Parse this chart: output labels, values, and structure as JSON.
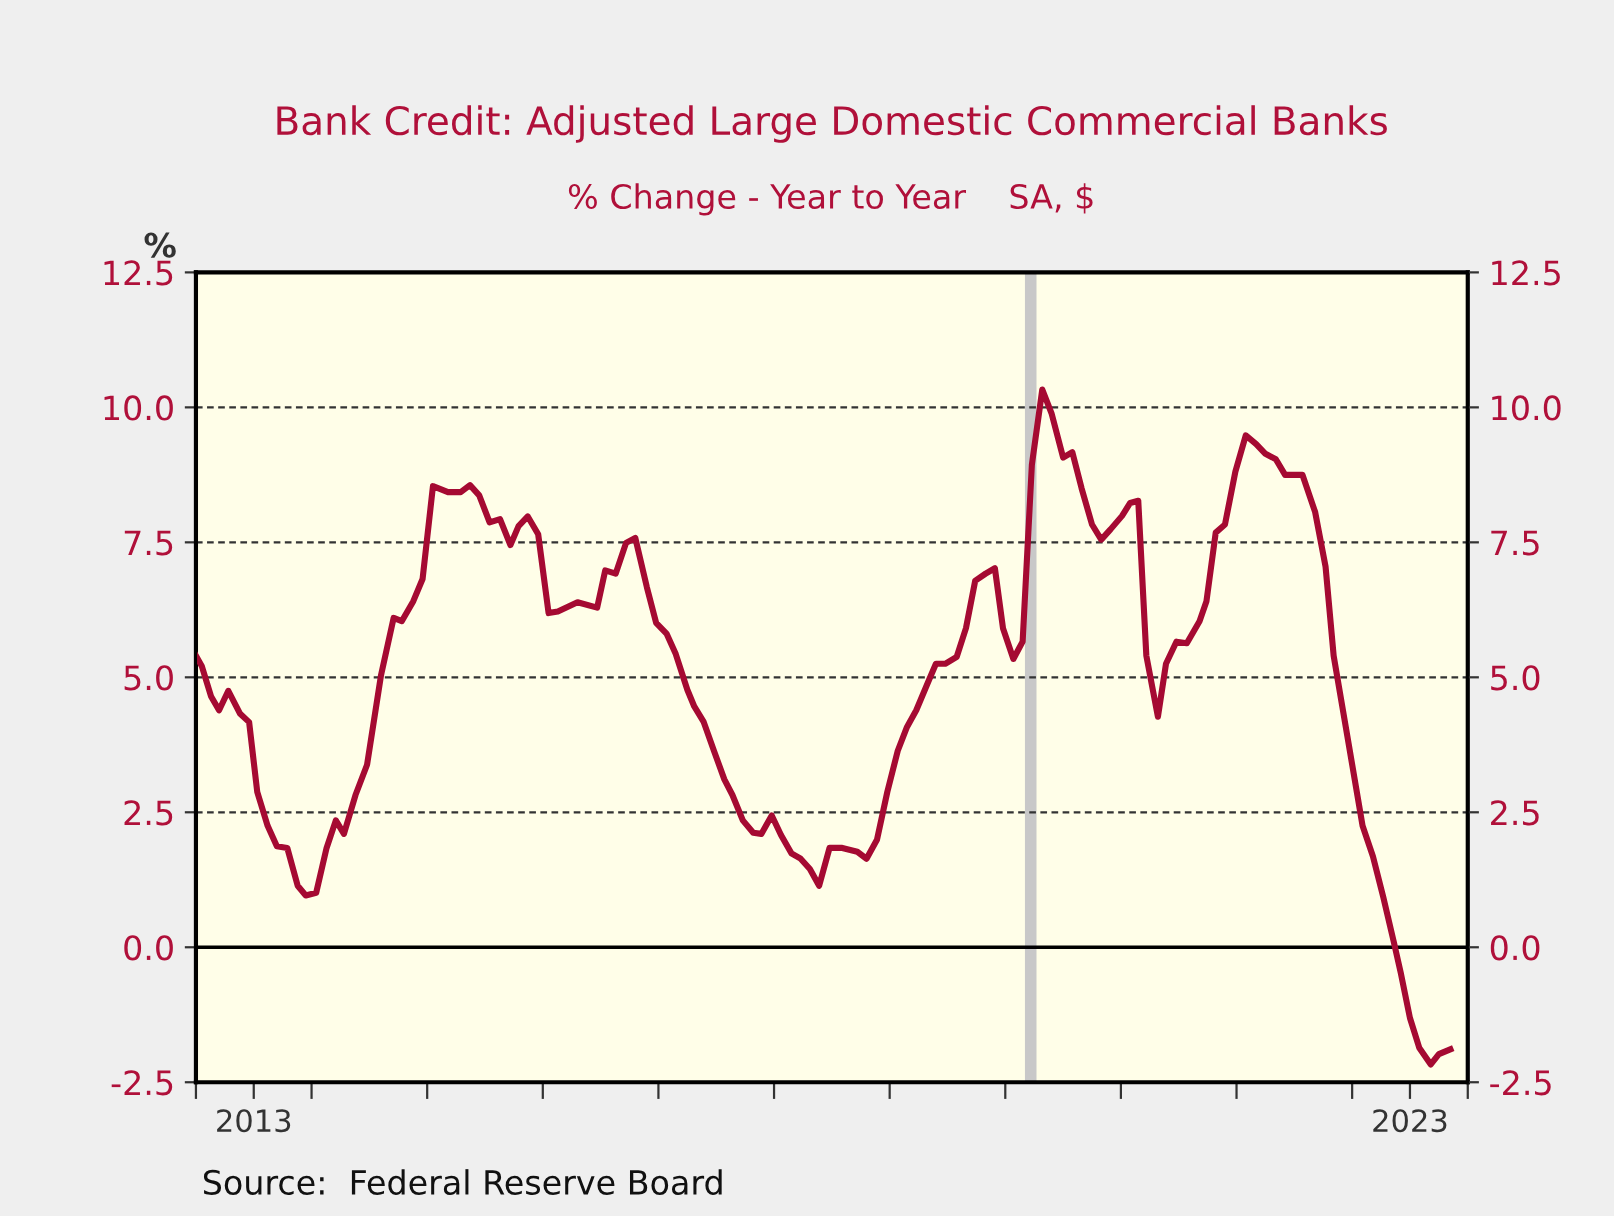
{
  "chart_data": {
    "type": "line",
    "title": "Bank Credit: Adjusted Large Domestic Commercial Banks",
    "subtitle": "% Change - Year to Year    SA, $",
    "ylabel": "%",
    "annotations": [
      "Source:  Federal Reserve Board"
    ],
    "x": [
      2013.0,
      2013.05,
      2013.13,
      2013.2,
      2013.28,
      2013.38,
      2013.46,
      2013.53,
      2013.62,
      2013.7,
      2013.79,
      2013.88,
      2013.95,
      2014.04,
      2014.13,
      2014.21,
      2014.28,
      2014.38,
      2014.48,
      2014.6,
      2014.71,
      2014.78,
      2014.88,
      2014.96,
      2015.05,
      2015.18,
      2015.29,
      2015.37,
      2015.45,
      2015.54,
      2015.63,
      2015.72,
      2015.79,
      2015.87,
      2015.96,
      2016.05,
      2016.13,
      2016.3,
      2016.47,
      2016.54,
      2016.63,
      2016.72,
      2016.8,
      2016.9,
      2016.98,
      2017.07,
      2017.15,
      2017.25,
      2017.31,
      2017.39,
      2017.48,
      2017.57,
      2017.64,
      2017.73,
      2017.82,
      2017.89,
      2017.98,
      2018.06,
      2018.15,
      2018.23,
      2018.31,
      2018.39,
      2018.48,
      2018.59,
      2018.72,
      2018.8,
      2018.89,
      2018.98,
      2019.07,
      2019.15,
      2019.23,
      2019.33,
      2019.4,
      2019.48,
      2019.58,
      2019.66,
      2019.74,
      2019.83,
      2019.91,
      2019.98,
      2020.07,
      2020.15,
      2020.23,
      2020.32,
      2020.4,
      2020.5,
      2020.58,
      2020.66,
      2020.75,
      2020.83,
      2020.91,
      2021.01,
      2021.08,
      2021.15,
      2021.22,
      2021.32,
      2021.39,
      2021.48,
      2021.57,
      2021.68,
      2021.74,
      2021.82,
      2021.9,
      2021.99,
      2022.08,
      2022.17,
      2022.25,
      2022.34,
      2022.42,
      2022.57,
      2022.68,
      2022.77,
      2022.84,
      2022.96,
      2023.09,
      2023.18,
      2023.27,
      2023.36,
      2023.42,
      2023.5,
      2023.58,
      2023.68,
      2023.75,
      2023.85
    ],
    "series": [
      {
        "color": "#a50a32",
        "values": [
          5.4,
          5.21,
          4.65,
          4.39,
          4.75,
          4.33,
          4.17,
          2.88,
          2.25,
          1.87,
          1.84,
          1.14,
          0.96,
          1.01,
          1.84,
          2.35,
          2.1,
          2.82,
          3.38,
          5.03,
          6.1,
          6.04,
          6.41,
          6.82,
          8.54,
          8.43,
          8.43,
          8.56,
          8.37,
          7.87,
          7.93,
          7.45,
          7.8,
          7.98,
          7.65,
          6.19,
          6.22,
          6.39,
          6.29,
          6.98,
          6.92,
          7.49,
          7.58,
          6.67,
          6.01,
          5.81,
          5.43,
          4.77,
          4.46,
          4.18,
          3.64,
          3.11,
          2.82,
          2.35,
          2.12,
          2.1,
          2.44,
          2.08,
          1.74,
          1.64,
          1.45,
          1.14,
          1.84,
          1.84,
          1.77,
          1.64,
          1.99,
          2.88,
          3.64,
          4.08,
          4.39,
          4.9,
          5.25,
          5.25,
          5.38,
          5.91,
          6.79,
          6.92,
          7.02,
          5.91,
          5.34,
          5.66,
          8.94,
          10.33,
          9.89,
          9.07,
          9.17,
          8.5,
          7.83,
          7.55,
          7.74,
          7.99,
          8.23,
          8.27,
          5.4,
          4.27,
          5.25,
          5.66,
          5.63,
          6.04,
          6.41,
          7.68,
          7.83,
          8.81,
          9.48,
          9.32,
          9.14,
          9.04,
          8.75,
          8.75,
          8.06,
          7.05,
          5.4,
          3.89,
          2.25,
          1.68,
          0.92,
          0.1,
          -0.47,
          -1.31,
          -1.86,
          -2.17,
          -1.98,
          -1.89
        ]
      }
    ],
    "xlim": [
      2013,
      2024
    ],
    "xticks": [
      {
        "value": 2013,
        "label": null
      },
      {
        "value": 2013.5,
        "label": "2013"
      },
      {
        "value": 2014,
        "label": null
      },
      {
        "value": 2015,
        "label": null
      },
      {
        "value": 2016,
        "label": null
      },
      {
        "value": 2017,
        "label": null
      },
      {
        "value": 2018,
        "label": null
      },
      {
        "value": 2019,
        "label": null
      },
      {
        "value": 2020,
        "label": null
      },
      {
        "value": 2021,
        "label": null
      },
      {
        "value": 2022,
        "label": null
      },
      {
        "value": 2023,
        "label": null
      },
      {
        "value": 2023.5,
        "label": "2023"
      },
      {
        "value": 2024,
        "label": null
      }
    ],
    "ylim": [
      -2.5,
      12.5
    ],
    "yticks": [
      -2.5,
      {
        "value": 0,
        "label": "0.0"
      },
      2.5,
      {
        "value": 5,
        "label": "5.0"
      },
      7.5,
      {
        "value": 10,
        "label": "10.0"
      },
      12.5
    ],
    "y2lim": [
      -2.5,
      12.5
    ],
    "y2ticks": [
      -2.5,
      {
        "value": 0,
        "label": "0.0"
      },
      2.5,
      {
        "value": 5,
        "label": "5.0"
      },
      7.5,
      {
        "value": 10,
        "label": "10.0"
      },
      12.5
    ],
    "ref_lines": [
      {
        "axis": "y",
        "value": 0,
        "color": "#000000",
        "line_style": "solid"
      }
    ],
    "bands": [
      {
        "axis": "x",
        "from": 2020.17,
        "to": 2020.27,
        "color": "#c8c8c8"
      }
    ],
    "grid": "y",
    "line_style": "solid",
    "marker": "none"
  }
}
